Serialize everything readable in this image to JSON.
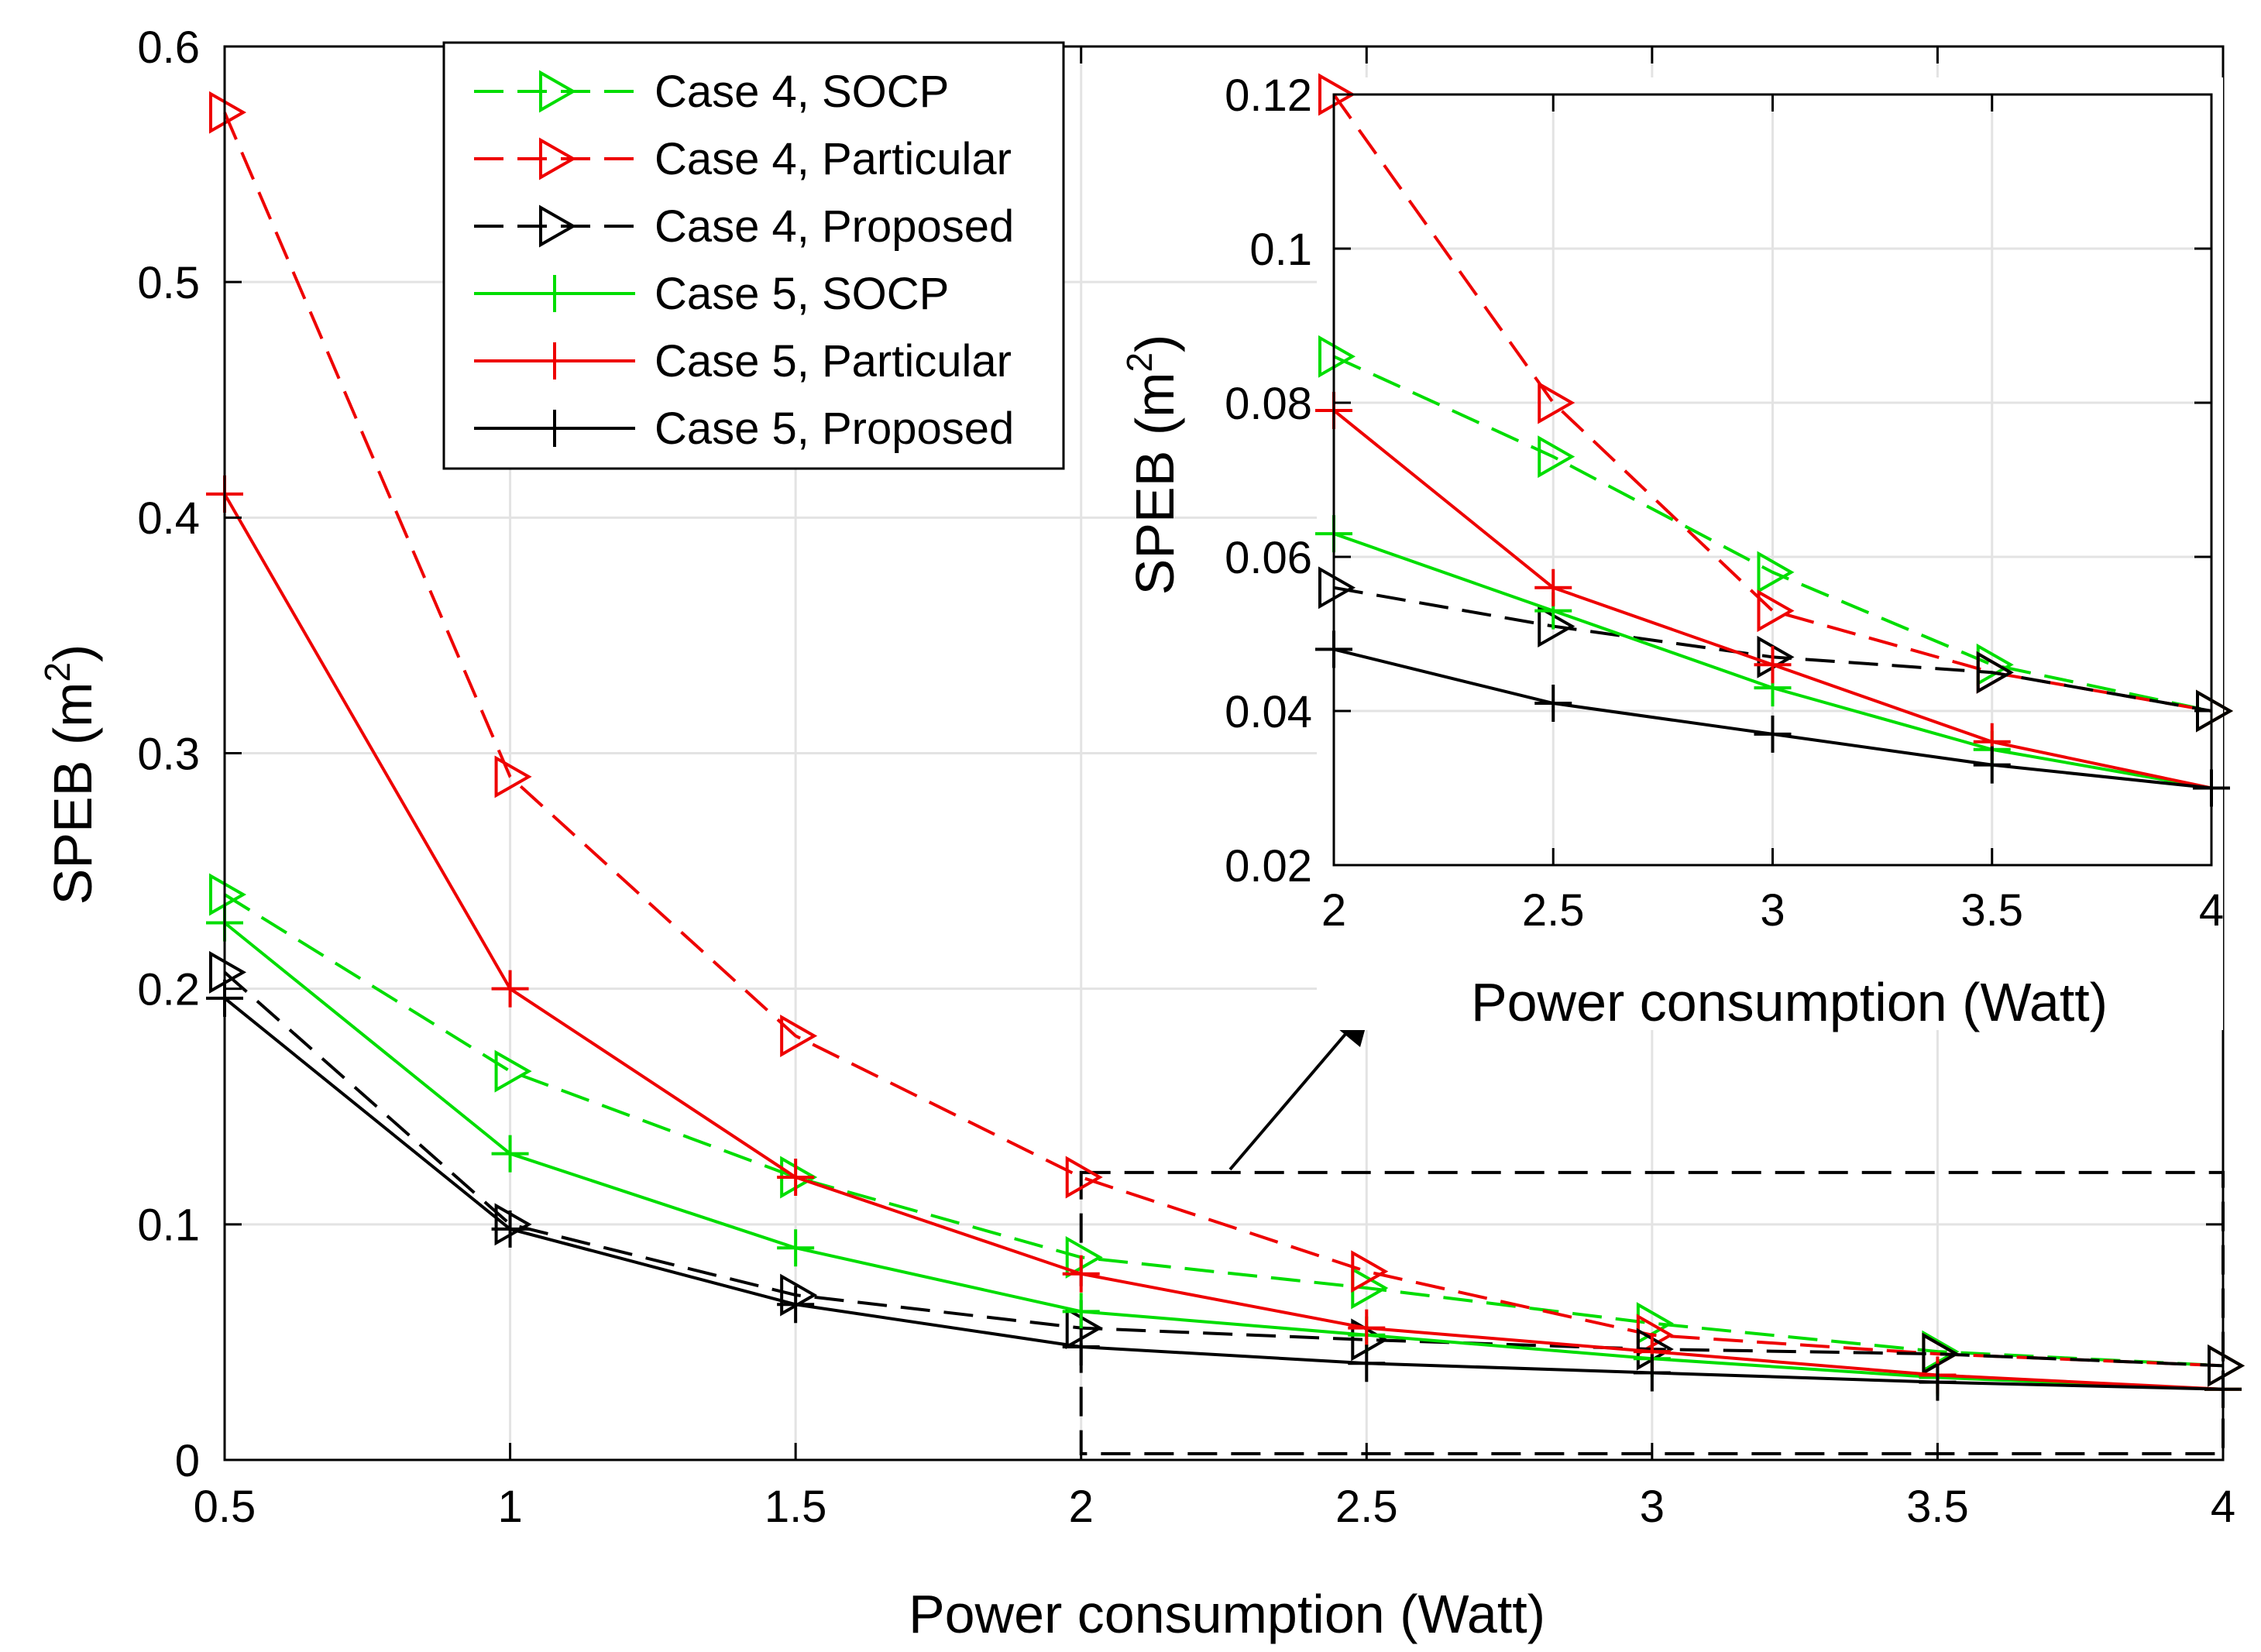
{
  "chart_data": {
    "type": "line",
    "xlabel": "Power consumption (Watt)",
    "ylabel_main": "SPEB (m",
    "ylabel_sup": "2",
    "ylabel_close": ")",
    "x": [
      0.5,
      1,
      1.5,
      2,
      2.5,
      3,
      3.5,
      4
    ],
    "xlim": [
      0.5,
      4
    ],
    "ylim": [
      0,
      0.6
    ],
    "xticks": [
      "0.5",
      "1",
      "1.5",
      "2",
      "2.5",
      "3",
      "3.5",
      "4"
    ],
    "yticks": [
      "0",
      "0.1",
      "0.2",
      "0.3",
      "0.4",
      "0.5",
      "0.6"
    ],
    "grid": true,
    "legend_position": "top-center",
    "series": [
      {
        "name": "Case 4, SOCP",
        "color": "#00dd00",
        "dash": "dashed",
        "marker": "triangle-right",
        "values": [
          0.24,
          0.165,
          0.12,
          0.086,
          0.073,
          0.058,
          0.046,
          0.04
        ]
      },
      {
        "name": "Case 4, Particular",
        "color": "#ee0000",
        "dash": "dashed",
        "marker": "triangle-right",
        "values": [
          0.572,
          0.29,
          0.18,
          0.12,
          0.08,
          0.053,
          0.045,
          0.04
        ]
      },
      {
        "name": "Case 4, Proposed",
        "color": "#000000",
        "dash": "dashed",
        "marker": "triangle-right",
        "values": [
          0.207,
          0.1,
          0.07,
          0.056,
          0.051,
          0.047,
          0.045,
          0.04
        ]
      },
      {
        "name": "Case 5, SOCP",
        "color": "#00dd00",
        "dash": "solid",
        "marker": "plus",
        "values": [
          0.228,
          0.13,
          0.09,
          0.063,
          0.053,
          0.043,
          0.035,
          0.03
        ]
      },
      {
        "name": "Case 5, Particular",
        "color": "#ee0000",
        "dash": "solid",
        "marker": "plus",
        "values": [
          0.41,
          0.2,
          0.12,
          0.079,
          0.056,
          0.046,
          0.036,
          0.03
        ]
      },
      {
        "name": "Case 5, Proposed",
        "color": "#000000",
        "dash": "solid",
        "marker": "plus",
        "values": [
          0.196,
          0.098,
          0.066,
          0.048,
          0.041,
          0.037,
          0.033,
          0.03
        ]
      }
    ],
    "inset": {
      "xlim": [
        2,
        4
      ],
      "ylim": [
        0.02,
        0.12
      ],
      "xticks": [
        "2",
        "2.5",
        "3",
        "3.5",
        "4"
      ],
      "yticks": [
        "0.02",
        "0.04",
        "0.06",
        "0.08",
        "0.1",
        "0.12"
      ],
      "xlabel": "Power consumption (Watt)",
      "ylabel_main": "SPEB (m",
      "ylabel_sup": "2",
      "ylabel_close": ")",
      "zoom_region": {
        "x": [
          2,
          4
        ],
        "y": [
          0,
          0.122
        ]
      }
    }
  }
}
